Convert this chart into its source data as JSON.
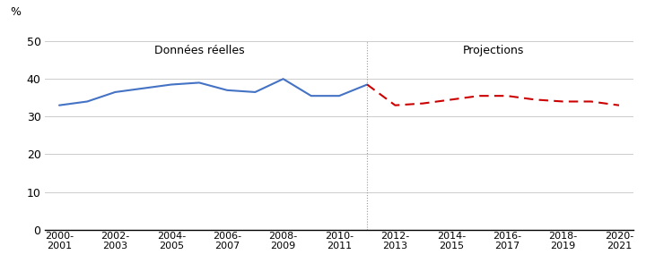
{
  "x_labels": [
    "2000-\n2001",
    "2002-\n2003",
    "2004-\n2005",
    "2006-\n2007",
    "2008-\n2009",
    "2010-\n2011",
    "2012-\n2013",
    "2014-\n2015",
    "2016-\n2017",
    "2018-\n2019",
    "2020-\n2021"
  ],
  "x_positions": [
    0,
    2,
    4,
    6,
    8,
    10,
    12,
    14,
    16,
    18,
    20
  ],
  "real_x": [
    0,
    1,
    2,
    3,
    4,
    5,
    6,
    7,
    8,
    9,
    10,
    11
  ],
  "real_y": [
    33.0,
    34.0,
    36.5,
    37.5,
    38.5,
    39.0,
    37.0,
    36.5,
    40.0,
    35.5,
    35.5,
    38.5
  ],
  "proj_x": [
    11,
    12,
    13,
    14,
    15,
    16,
    17,
    18,
    19,
    20
  ],
  "proj_y": [
    38.5,
    33.0,
    33.5,
    34.5,
    35.5,
    35.5,
    34.5,
    34.0,
    34.0,
    33.0
  ],
  "divider_x": 11,
  "real_color": "#4472C4",
  "proj_color": "#CC0000",
  "label_donnees": "Données réelles",
  "label_projections": "Projections",
  "ylabel": "%",
  "yticks": [
    0,
    10,
    20,
    30,
    40,
    50
  ],
  "ylim": [
    0,
    55
  ],
  "xlim": [
    -0.5,
    20.5
  ],
  "background_color": "#ffffff",
  "grid_color": "#cccccc",
  "divider_color": "#999999"
}
